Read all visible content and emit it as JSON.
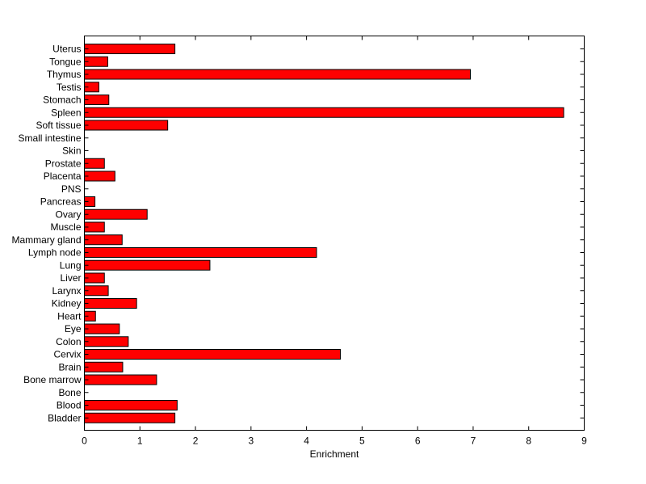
{
  "chart_data": {
    "type": "bar",
    "orientation": "horizontal",
    "title": "",
    "xlabel": "Enrichment",
    "ylabel": "",
    "xlim": [
      0,
      9
    ],
    "x_ticks": [
      "0",
      "1",
      "2",
      "3",
      "4",
      "5",
      "6",
      "7",
      "8",
      "9"
    ],
    "grid": false,
    "legend": "none",
    "bar_color": "#ff0000",
    "bar_edge_color": "#000000",
    "categories": [
      "Bladder",
      "Blood",
      "Bone",
      "Bone marrow",
      "Brain",
      "Cervix",
      "Colon",
      "Eye",
      "Heart",
      "Kidney",
      "Larynx",
      "Liver",
      "Lung",
      "Lymph node",
      "Mammary gland",
      "Muscle",
      "Ovary",
      "Pancreas",
      "PNS",
      "Placenta",
      "Prostate",
      "Skin",
      "Small intestine",
      "Soft tissue",
      "Spleen",
      "Stomach",
      "Testis",
      "Thymus",
      "Tongue",
      "Uterus"
    ],
    "values": [
      1.63,
      1.67,
      0,
      1.3,
      0.69,
      4.61,
      0.79,
      0.63,
      0.2,
      0.94,
      0.43,
      0.36,
      2.26,
      4.18,
      0.68,
      0.36,
      1.13,
      0.19,
      0,
      0.55,
      0.36,
      0,
      0,
      1.5,
      8.63,
      0.44,
      0.26,
      6.95,
      0.42,
      1.63
    ]
  }
}
